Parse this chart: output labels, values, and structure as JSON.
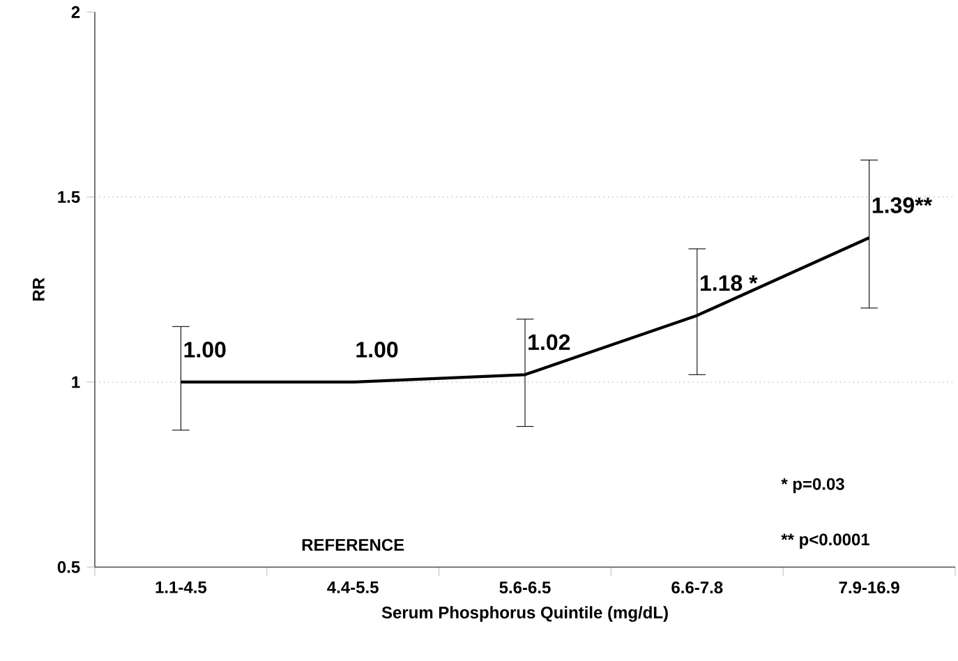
{
  "chart_data": {
    "type": "line",
    "xlabel": "Serum Phosphorus Quintile (mg/dL)",
    "ylabel": "RR",
    "categories": [
      "1.1-4.5",
      "4.4-5.5",
      "5.6-6.5",
      "6.6-7.8",
      "7.9-16.9"
    ],
    "values": [
      1.0,
      1.0,
      1.02,
      1.18,
      1.39
    ],
    "errors": [
      [
        0.87,
        1.15
      ],
      null,
      [
        0.88,
        1.17
      ],
      [
        1.02,
        1.36
      ],
      [
        1.2,
        1.6
      ]
    ],
    "value_labels": [
      "1.00",
      "1.00",
      "1.02",
      "1.18 *",
      "1.39**"
    ],
    "color": "#000000",
    "ylim": [
      0.5,
      2
    ],
    "yticks": [
      0.5,
      1,
      1.5,
      2
    ],
    "ref_lines": [
      {
        "axis": "y",
        "value": 1.5,
        "line_style": "dotted",
        "color": "#888888"
      },
      {
        "axis": "y",
        "value": 1,
        "line_style": "dotted",
        "color": "#888888"
      }
    ],
    "annotations": [
      "REFERENCE",
      "* p=0.03",
      "** p<0.0001"
    ],
    "grid": false,
    "marker": "none",
    "line_style": "solid"
  }
}
